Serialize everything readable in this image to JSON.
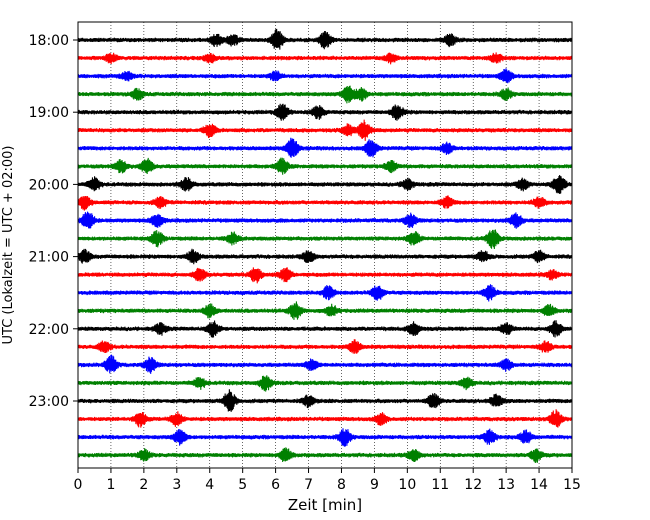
{
  "chart_data": {
    "type": "line",
    "title": "",
    "xlabel": "Zeit  [min]",
    "ylabel": "UTC (Lokalzeit = UTC + 02:00)",
    "xlim": [
      0,
      15
    ],
    "x_ticks": [
      0,
      1,
      2,
      3,
      4,
      5,
      6,
      7,
      8,
      9,
      10,
      11,
      12,
      13,
      14,
      15
    ],
    "y_tick_labels": [
      "18:00",
      "19:00",
      "20:00",
      "21:00",
      "22:00",
      "23:00"
    ],
    "grid": "vertical dotted lines at each minute",
    "trace_interval_min": 15,
    "trace_colors": [
      "#000000",
      "#ff0000",
      "#0000ff",
      "#008000"
    ],
    "traces": [
      {
        "start": "18:00",
        "color": "#000000",
        "events": [
          [
            4.2,
            6
          ],
          [
            4.7,
            5
          ],
          [
            6.05,
            10
          ],
          [
            7.5,
            8
          ],
          [
            11.3,
            5
          ]
        ]
      },
      {
        "start": "18:15",
        "color": "#ff0000",
        "events": [
          [
            1.0,
            4
          ],
          [
            4.0,
            4
          ],
          [
            9.5,
            4
          ],
          [
            12.7,
            4
          ]
        ]
      },
      {
        "start": "18:30",
        "color": "#0000ff",
        "events": [
          [
            1.5,
            4
          ],
          [
            6.0,
            4
          ],
          [
            13.0,
            6
          ]
        ]
      },
      {
        "start": "18:45",
        "color": "#008000",
        "events": [
          [
            1.8,
            5
          ],
          [
            8.2,
            8
          ],
          [
            8.6,
            6
          ],
          [
            13.0,
            5
          ]
        ]
      },
      {
        "start": "19:00",
        "color": "#000000",
        "events": [
          [
            6.2,
            8
          ],
          [
            7.3,
            6
          ],
          [
            9.7,
            7
          ]
        ]
      },
      {
        "start": "19:15",
        "color": "#ff0000",
        "events": [
          [
            4.0,
            6
          ],
          [
            8.7,
            9
          ],
          [
            8.2,
            5
          ]
        ]
      },
      {
        "start": "19:30",
        "color": "#0000ff",
        "events": [
          [
            6.5,
            9
          ],
          [
            8.9,
            8
          ],
          [
            11.2,
            5
          ]
        ]
      },
      {
        "start": "19:45",
        "color": "#008000",
        "events": [
          [
            1.3,
            6
          ],
          [
            2.1,
            7
          ],
          [
            6.2,
            7
          ],
          [
            9.5,
            5
          ]
        ]
      },
      {
        "start": "20:00",
        "color": "#000000",
        "events": [
          [
            0.5,
            6
          ],
          [
            3.3,
            6
          ],
          [
            10.0,
            5
          ],
          [
            13.5,
            5
          ],
          [
            14.6,
            10
          ]
        ]
      },
      {
        "start": "20:15",
        "color": "#ff0000",
        "events": [
          [
            0.2,
            6
          ],
          [
            2.5,
            5
          ],
          [
            11.2,
            5
          ],
          [
            14.0,
            5
          ]
        ]
      },
      {
        "start": "20:30",
        "color": "#0000ff",
        "events": [
          [
            0.3,
            9
          ],
          [
            2.4,
            6
          ],
          [
            10.1,
            6
          ],
          [
            13.3,
            7
          ]
        ]
      },
      {
        "start": "20:45",
        "color": "#008000",
        "events": [
          [
            2.4,
            7
          ],
          [
            4.7,
            5
          ],
          [
            10.2,
            6
          ],
          [
            12.6,
            9
          ]
        ]
      },
      {
        "start": "21:00",
        "color": "#000000",
        "events": [
          [
            0.2,
            6
          ],
          [
            3.5,
            6
          ],
          [
            7.0,
            5
          ],
          [
            12.3,
            5
          ],
          [
            14.0,
            5
          ]
        ]
      },
      {
        "start": "21:15",
        "color": "#ff0000",
        "events": [
          [
            3.7,
            6
          ],
          [
            5.4,
            7
          ],
          [
            6.3,
            6
          ],
          [
            14.4,
            4
          ]
        ]
      },
      {
        "start": "21:30",
        "color": "#0000ff",
        "events": [
          [
            7.6,
            6
          ],
          [
            9.1,
            7
          ],
          [
            12.5,
            7
          ]
        ]
      },
      {
        "start": "21:45",
        "color": "#008000",
        "events": [
          [
            4.0,
            6
          ],
          [
            6.6,
            8
          ],
          [
            7.7,
            5
          ],
          [
            14.3,
            5
          ]
        ]
      },
      {
        "start": "22:00",
        "color": "#000000",
        "events": [
          [
            2.5,
            5
          ],
          [
            4.1,
            7
          ],
          [
            10.2,
            6
          ],
          [
            13.0,
            5
          ],
          [
            14.5,
            7
          ]
        ]
      },
      {
        "start": "22:15",
        "color": "#ff0000",
        "events": [
          [
            0.8,
            5
          ],
          [
            8.4,
            6
          ],
          [
            14.2,
            5
          ]
        ]
      },
      {
        "start": "22:30",
        "color": "#0000ff",
        "events": [
          [
            1.0,
            8
          ],
          [
            2.2,
            7
          ],
          [
            7.1,
            5
          ],
          [
            13.0,
            5
          ]
        ]
      },
      {
        "start": "22:45",
        "color": "#008000",
        "events": [
          [
            3.7,
            5
          ],
          [
            5.7,
            7
          ],
          [
            11.8,
            5
          ]
        ]
      },
      {
        "start": "23:00",
        "color": "#000000",
        "events": [
          [
            4.6,
            10
          ],
          [
            7.0,
            5
          ],
          [
            10.8,
            7
          ],
          [
            12.7,
            6
          ]
        ]
      },
      {
        "start": "23:15",
        "color": "#ff0000",
        "events": [
          [
            1.9,
            7
          ],
          [
            3.0,
            6
          ],
          [
            9.2,
            5
          ],
          [
            14.5,
            8
          ]
        ]
      },
      {
        "start": "23:30",
        "color": "#0000ff",
        "events": [
          [
            3.1,
            7
          ],
          [
            8.1,
            8
          ],
          [
            12.5,
            7
          ],
          [
            13.6,
            6
          ]
        ]
      },
      {
        "start": "23:45",
        "color": "#008000",
        "events": [
          [
            2.0,
            5
          ],
          [
            6.3,
            6
          ],
          [
            10.2,
            5
          ],
          [
            13.9,
            6
          ]
        ]
      }
    ]
  }
}
